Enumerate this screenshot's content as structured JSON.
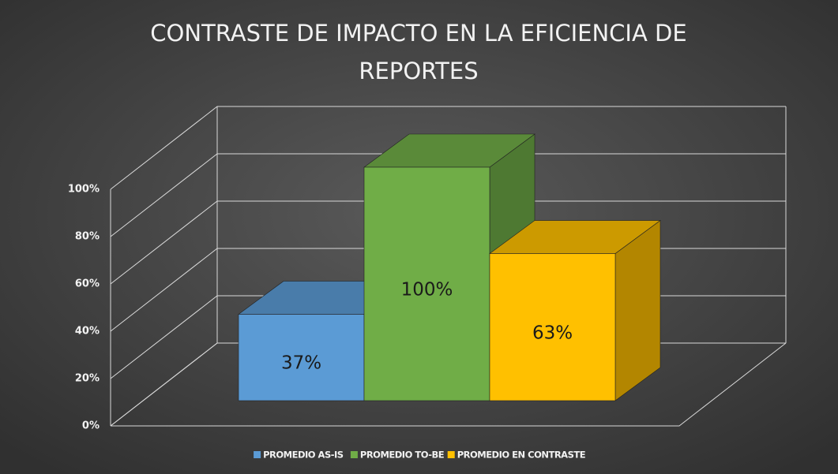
{
  "chart_data": {
    "type": "bar3d",
    "title": "CONTRASTE DE IMPACTO EN LA EFICIENCIA DE REPORTES",
    "ylim": [
      0,
      100
    ],
    "yticks": [
      {
        "value": 0,
        "label": "0%"
      },
      {
        "value": 20,
        "label": "20%"
      },
      {
        "value": 40,
        "label": "40%"
      },
      {
        "value": 60,
        "label": "60%"
      },
      {
        "value": 80,
        "label": "80%"
      },
      {
        "value": 100,
        "label": "100%"
      }
    ],
    "grid": true,
    "legend": "bottom",
    "series": [
      {
        "name": "PROMEDIO AS-IS",
        "color": "#5b9bd5",
        "values": [
          37
        ],
        "value_labels": [
          "37%"
        ]
      },
      {
        "name": "PROMEDIO TO-BE",
        "color": "#70ad47",
        "values": [
          100
        ],
        "value_labels": [
          "100%"
        ]
      },
      {
        "name": "PROMEDIO EN CONTRASTE",
        "color": "#ffc000",
        "values": [
          63
        ],
        "value_labels": [
          "63%"
        ]
      }
    ]
  }
}
